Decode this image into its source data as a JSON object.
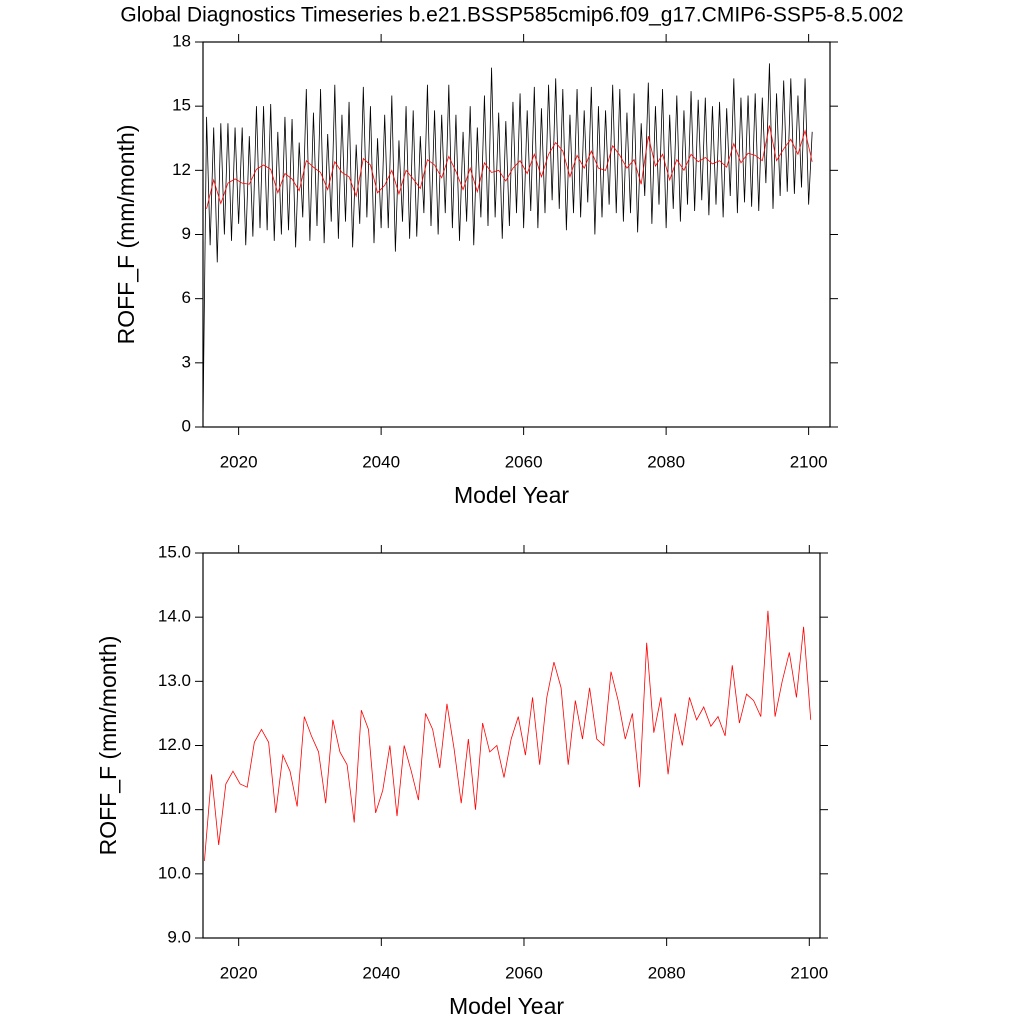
{
  "chart_data": [
    {
      "type": "line",
      "title": "Global Diagnostics Timeseries b.e21.BSSP585cmip6.f09_g17.CMIP6-SSP5-8.5.002",
      "ylabel": "ROFF_F (mm/month)",
      "xlabel": "Model Year",
      "xlim": [
        2015,
        2103
      ],
      "xticks": [
        2020,
        2040,
        2060,
        2080,
        2100
      ],
      "ylim": [
        0,
        18
      ],
      "yticks": [
        0,
        3,
        6,
        9,
        12,
        15,
        18
      ],
      "series": [
        {
          "color": "#000000",
          "x": [
            2015,
            2015.5,
            2016,
            2016.5,
            2017,
            2017.5,
            2018,
            2018.5,
            2019,
            2019.5,
            2020,
            2020.5,
            2021,
            2021.5,
            2022,
            2022.5,
            2023,
            2023.5,
            2024,
            2024.5,
            2025,
            2025.5,
            2026,
            2026.5,
            2027,
            2027.5,
            2028,
            2028.5,
            2029,
            2029.5,
            2030,
            2030.5,
            2031,
            2031.5,
            2032,
            2032.5,
            2033,
            2033.5,
            2034,
            2034.5,
            2035,
            2035.5,
            2036,
            2036.5,
            2037,
            2037.5,
            2038,
            2038.5,
            2039,
            2039.5,
            2040,
            2040.5,
            2041,
            2041.5,
            2042,
            2042.5,
            2043,
            2043.5,
            2044,
            2044.5,
            2045,
            2045.5,
            2046,
            2046.5,
            2047,
            2047.5,
            2048,
            2048.5,
            2049,
            2049.5,
            2050,
            2050.5,
            2051,
            2051.5,
            2052,
            2052.5,
            2053,
            2053.5,
            2054,
            2054.5,
            2055,
            2055.5,
            2056,
            2056.5,
            2057,
            2057.5,
            2058,
            2058.5,
            2059,
            2059.5,
            2060,
            2060.5,
            2061,
            2061.5,
            2062,
            2062.5,
            2063,
            2063.5,
            2064,
            2064.5,
            2065,
            2065.5,
            2066,
            2066.5,
            2067,
            2067.5,
            2068,
            2068.5,
            2069,
            2069.5,
            2070,
            2070.5,
            2071,
            2071.5,
            2072,
            2072.5,
            2073,
            2073.5,
            2074,
            2074.5,
            2075,
            2075.5,
            2076,
            2076.5,
            2077,
            2077.5,
            2078,
            2078.5,
            2079,
            2079.5,
            2080,
            2080.5,
            2081,
            2081.5,
            2082,
            2082.5,
            2083,
            2083.5,
            2084,
            2084.5,
            2085,
            2085.5,
            2086,
            2086.5,
            2087,
            2087.5,
            2088,
            2088.5,
            2089,
            2089.5,
            2090,
            2090.5,
            2091,
            2091.5,
            2092,
            2092.5,
            2093,
            2093.5,
            2094,
            2094.5,
            2095,
            2095.5,
            2096,
            2096.5,
            2097,
            2097.5,
            2098,
            2098.5,
            2099,
            2099.5,
            2100,
            2100.5
          ],
          "values": [
            0.2,
            14.5,
            8.5,
            14.0,
            7.7,
            14.2,
            9.0,
            14.2,
            8.7,
            14.0,
            9.5,
            14.0,
            8.5,
            13.6,
            8.9,
            15.0,
            9.3,
            15.0,
            9.2,
            15.1,
            8.7,
            13.8,
            9.0,
            14.5,
            9.2,
            14.4,
            8.4,
            13.3,
            9.8,
            15.8,
            8.7,
            14.7,
            9.4,
            15.8,
            8.6,
            13.7,
            9.6,
            16.0,
            8.8,
            14.6,
            9.6,
            15.2,
            8.4,
            13.2,
            9.5,
            15.9,
            9.8,
            15.0,
            8.6,
            13.5,
            9.3,
            14.6,
            9.3,
            15.5,
            8.2,
            13.4,
            9.6,
            15.0,
            8.8,
            14.8,
            8.9,
            13.6,
            10.0,
            16.0,
            9.4,
            14.8,
            9.0,
            14.6,
            10.0,
            16.0,
            9.3,
            14.6,
            8.7,
            13.8,
            9.6,
            15.0,
            8.5,
            14.0,
            9.8,
            15.5,
            9.4,
            16.8,
            9.8,
            14.7,
            8.8,
            14.3,
            9.4,
            15.2,
            10.0,
            15.6,
            9.3,
            14.8,
            10.1,
            15.9,
            9.3,
            14.9,
            10.0,
            16.0,
            10.6,
            16.3,
            10.2,
            15.8,
            9.2,
            14.6,
            10.0,
            15.8,
            9.8,
            14.8,
            10.5,
            15.9,
            9.0,
            15.0,
            9.8,
            14.8,
            10.4,
            16.0,
            10.0,
            15.8,
            9.6,
            14.7,
            10.0,
            15.6,
            9.1,
            14.2,
            10.8,
            16.1,
            9.5,
            15.0,
            10.4,
            15.8,
            9.3,
            14.6,
            10.2,
            15.5,
            9.6,
            14.8,
            10.4,
            15.7,
            10.1,
            15.3,
            10.6,
            15.4,
            9.9,
            15.0,
            10.4,
            15.2,
            9.8,
            14.9,
            10.8,
            16.3,
            10.0,
            15.4,
            10.5,
            15.5,
            10.3,
            15.6,
            10.1,
            15.4,
            11.4,
            17.0,
            10.2,
            15.6,
            10.8,
            16.2,
            11.0,
            16.3,
            10.9,
            15.5,
            11.2,
            16.3,
            10.4,
            13.8
          ]
        },
        {
          "color": "#ff0000",
          "x": [
            2015.5,
            2016.5,
            2017.5,
            2018.5,
            2019.5,
            2020.5,
            2021.5,
            2022.5,
            2023.5,
            2024.5,
            2025.5,
            2026.5,
            2027.5,
            2028.5,
            2029.5,
            2030.5,
            2031.5,
            2032.5,
            2033.5,
            2034.5,
            2035.5,
            2036.5,
            2037.5,
            2038.5,
            2039.5,
            2040.5,
            2041.5,
            2042.5,
            2043.5,
            2044.5,
            2045.5,
            2046.5,
            2047.5,
            2048.5,
            2049.5,
            2050.5,
            2051.5,
            2052.5,
            2053.5,
            2054.5,
            2055.5,
            2056.5,
            2057.5,
            2058.5,
            2059.5,
            2060.5,
            2061.5,
            2062.5,
            2063.5,
            2064.5,
            2065.5,
            2066.5,
            2067.5,
            2068.5,
            2069.5,
            2070.5,
            2071.5,
            2072.5,
            2073.5,
            2074.5,
            2075.5,
            2076.5,
            2077.5,
            2078.5,
            2079.5,
            2080.5,
            2081.5,
            2082.5,
            2083.5,
            2084.5,
            2085.5,
            2086.5,
            2087.5,
            2088.5,
            2089.5,
            2090.5,
            2091.5,
            2092.5,
            2093.5,
            2094.5,
            2095.5,
            2096.5,
            2097.5,
            2098.5,
            2099.5,
            2100.5
          ],
          "values": [
            10.2,
            11.55,
            10.45,
            11.4,
            11.6,
            11.4,
            11.35,
            12.05,
            12.25,
            12.05,
            10.95,
            11.85,
            11.6,
            11.05,
            12.45,
            12.15,
            11.9,
            11.1,
            12.4,
            11.9,
            11.7,
            10.8,
            12.55,
            12.25,
            10.95,
            11.3,
            12.0,
            10.9,
            12.0,
            11.6,
            11.15,
            12.5,
            12.25,
            11.65,
            12.65,
            11.95,
            11.1,
            12.1,
            11.0,
            12.35,
            11.9,
            12.0,
            11.5,
            12.1,
            12.45,
            11.85,
            12.75,
            11.7,
            12.75,
            13.3,
            12.9,
            11.7,
            12.7,
            12.1,
            12.9,
            12.1,
            12.0,
            13.15,
            12.7,
            12.1,
            12.5,
            11.35,
            13.6,
            12.2,
            12.75,
            11.55,
            12.5,
            12.0,
            12.75,
            12.4,
            12.6,
            12.3,
            12.45,
            12.15,
            13.25,
            12.35,
            12.8,
            12.7,
            12.45,
            14.1,
            12.45,
            13.0,
            13.45,
            12.75,
            13.85,
            12.4
          ]
        }
      ]
    },
    {
      "type": "line",
      "ylabel": "ROFF_F (mm/month)",
      "xlabel": "Model Year",
      "xlim": [
        2015,
        2101.5
      ],
      "xticks": [
        2020,
        2040,
        2060,
        2080,
        2100
      ],
      "ylim": [
        9,
        15
      ],
      "yticks": [
        {
          "value": 9,
          "label": "9.0"
        },
        {
          "value": 10,
          "label": "10.0"
        },
        {
          "value": 11,
          "label": "11.0"
        },
        {
          "value": 12,
          "label": "12.0"
        },
        {
          "value": 13,
          "label": "13.0"
        },
        {
          "value": 14,
          "label": "14.0"
        },
        {
          "value": 15,
          "label": "15.0"
        }
      ],
      "series": [
        {
          "color": "#ff0000",
          "x": [
            2015.2,
            2016.2,
            2017.2,
            2018.2,
            2019.2,
            2020.2,
            2021.2,
            2022.2,
            2023.2,
            2024.2,
            2025.2,
            2026.2,
            2027.2,
            2028.2,
            2029.2,
            2030.2,
            2031.2,
            2032.2,
            2033.2,
            2034.2,
            2035.2,
            2036.2,
            2037.2,
            2038.2,
            2039.2,
            2040.2,
            2041.2,
            2042.2,
            2043.2,
            2044.2,
            2045.2,
            2046.2,
            2047.2,
            2048.2,
            2049.2,
            2050.2,
            2051.2,
            2052.2,
            2053.2,
            2054.2,
            2055.2,
            2056.2,
            2057.2,
            2058.2,
            2059.2,
            2060.2,
            2061.2,
            2062.2,
            2063.2,
            2064.2,
            2065.2,
            2066.2,
            2067.2,
            2068.2,
            2069.2,
            2070.2,
            2071.2,
            2072.2,
            2073.2,
            2074.2,
            2075.2,
            2076.2,
            2077.2,
            2078.2,
            2079.2,
            2080.2,
            2081.2,
            2082.2,
            2083.2,
            2084.2,
            2085.2,
            2086.2,
            2087.2,
            2088.2,
            2089.2,
            2090.2,
            2091.2,
            2092.2,
            2093.2,
            2094.2,
            2095.2,
            2096.2,
            2097.2,
            2098.2,
            2099.2,
            2100.2
          ],
          "values": [
            10.2,
            11.55,
            10.45,
            11.4,
            11.6,
            11.4,
            11.35,
            12.05,
            12.25,
            12.05,
            10.95,
            11.85,
            11.6,
            11.05,
            12.45,
            12.15,
            11.9,
            11.1,
            12.4,
            11.9,
            11.7,
            10.8,
            12.55,
            12.25,
            10.95,
            11.3,
            12.0,
            10.9,
            12.0,
            11.6,
            11.15,
            12.5,
            12.25,
            11.65,
            12.65,
            11.95,
            11.1,
            12.1,
            11.0,
            12.35,
            11.9,
            12.0,
            11.5,
            12.1,
            12.45,
            11.85,
            12.75,
            11.7,
            12.75,
            13.3,
            12.9,
            11.7,
            12.7,
            12.1,
            12.9,
            12.1,
            12.0,
            13.15,
            12.7,
            12.1,
            12.5,
            11.35,
            13.6,
            12.2,
            12.75,
            11.55,
            12.5,
            12.0,
            12.75,
            12.4,
            12.6,
            12.3,
            12.45,
            12.15,
            13.25,
            12.35,
            12.8,
            12.7,
            12.45,
            14.1,
            12.45,
            13.0,
            13.45,
            12.75,
            13.85,
            12.4
          ]
        }
      ]
    }
  ]
}
